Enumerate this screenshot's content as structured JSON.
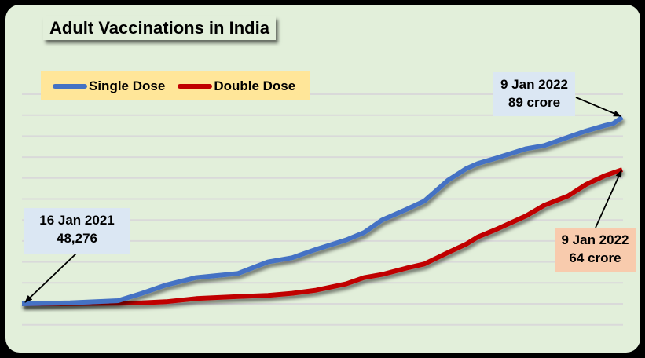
{
  "title": "Adult Vaccinations in India",
  "legend": {
    "items": [
      {
        "label": "Single Dose",
        "color": "#4472c4"
      },
      {
        "label": "Double Dose",
        "color": "#c00000"
      }
    ]
  },
  "callouts": {
    "start": {
      "line1": "16 Jan 2021",
      "line2": "48,276"
    },
    "single_end": {
      "line1": "9 Jan 2022",
      "line2": "89 crore"
    },
    "double_end": {
      "line1": "9 Jan 2022",
      "line2": "64 crore"
    }
  },
  "colors": {
    "background": "#000000",
    "panel": "#e2efda",
    "grid": "#d9d9d9",
    "single": "#4472c4",
    "double": "#c00000",
    "legend_bg": "#ffe699"
  },
  "chart_data": {
    "type": "line",
    "title": "Adult Vaccinations in India",
    "xlabel": "",
    "ylabel": "",
    "x_range": [
      "16 Jan 2021",
      "9 Jan 2022"
    ],
    "ylim": [
      -10,
      100
    ],
    "y_unit": "crore",
    "grid": true,
    "legend_position": "top-left",
    "x": [
      0.0,
      0.08,
      0.16,
      0.2,
      0.24,
      0.29,
      0.36,
      0.41,
      0.45,
      0.49,
      0.54,
      0.57,
      0.6,
      0.64,
      0.67,
      0.71,
      0.74,
      0.76,
      0.79,
      0.84,
      0.87,
      0.91,
      0.94,
      0.97,
      0.985,
      1.0
    ],
    "series": [
      {
        "name": "Single Dose",
        "values": [
          0.0,
          0.5,
          1.5,
          5,
          9,
          12.5,
          14.5,
          20,
          22,
          26,
          30.5,
          34,
          40,
          45,
          49,
          59,
          64.5,
          67,
          69.5,
          74,
          75.5,
          79.5,
          82.5,
          85,
          86,
          89
        ]
      },
      {
        "name": "Double Dose",
        "values": [
          0.0,
          0.1,
          0.3,
          0.5,
          1.0,
          2.5,
          3.5,
          4.0,
          5.0,
          6.5,
          9.5,
          12.5,
          14,
          17,
          19,
          24.5,
          28.5,
          32,
          35.5,
          42,
          47,
          51.5,
          57,
          61,
          62.5,
          64
        ]
      }
    ],
    "annotations": [
      {
        "text": "16 Jan 2021\n48,276",
        "series": "Single Dose",
        "point": "start"
      },
      {
        "text": "9 Jan 2022\n89 crore",
        "series": "Single Dose",
        "point": "end"
      },
      {
        "text": "9 Jan 2022\n64 crore",
        "series": "Double Dose",
        "point": "end"
      }
    ]
  }
}
